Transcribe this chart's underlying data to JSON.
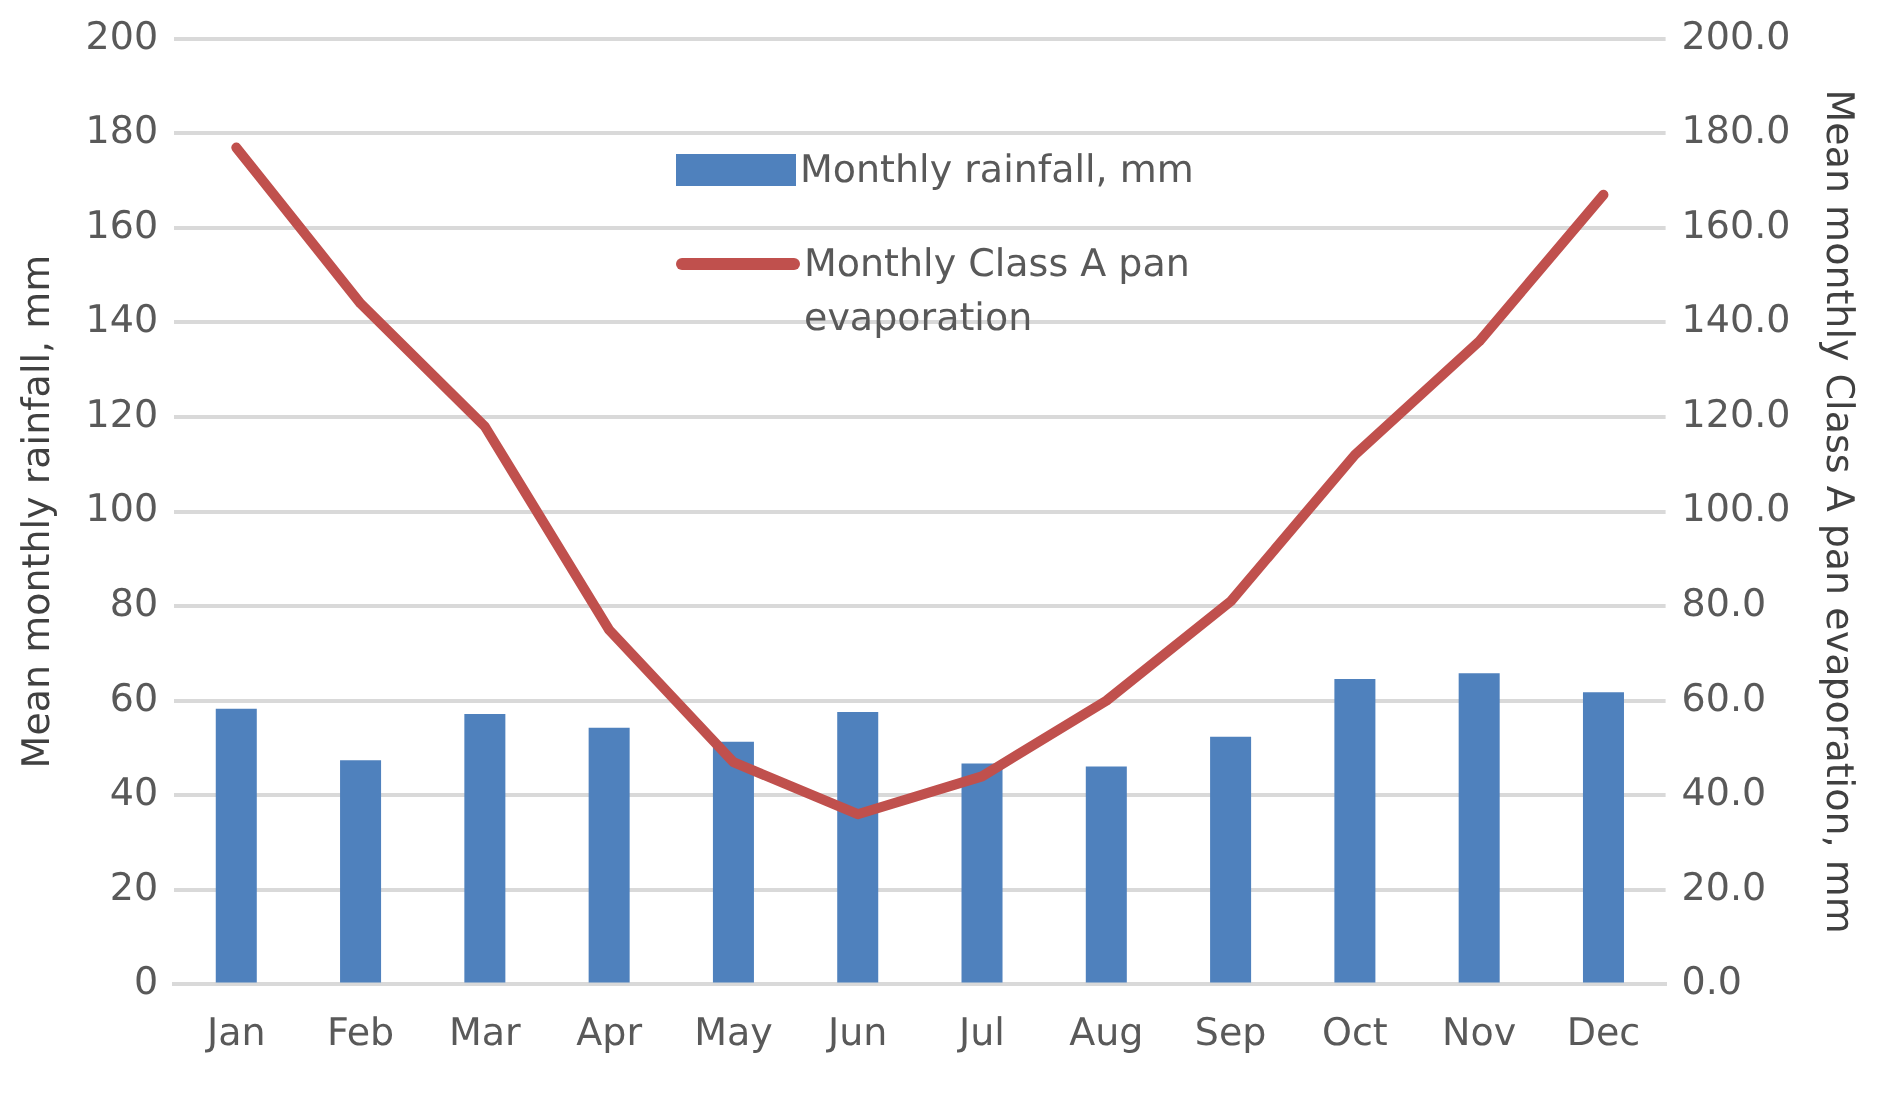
{
  "chart_data": {
    "type": "bar",
    "ylabel": "Mean monthly rainfall, mm",
    "y2label": "Mean monthly Class A pan evaporation, mm",
    "categories": [
      "Jan",
      "Feb",
      "Mar",
      "Apr",
      "May",
      "Jun",
      "Jul",
      "Aug",
      "Sep",
      "Oct",
      "Nov",
      "Dec"
    ],
    "series": [
      {
        "name": "Monthly rainfall, mm",
        "color": "#4f81bd",
        "values": [
          58.3,
          47.4,
          57.2,
          54.3,
          51.3,
          57.6,
          46.7,
          46.1,
          52.4,
          64.6,
          65.8,
          61.8
        ]
      },
      {
        "name": "Monthly Class A pan evaporation",
        "type": "line",
        "axis": "y2",
        "color": "#c0504d",
        "values": [
          177,
          144,
          118,
          75,
          47,
          36,
          44,
          60,
          81,
          112,
          136,
          167
        ]
      }
    ],
    "ylim": [
      0,
      200
    ],
    "yticks": [
      0,
      20,
      40,
      60,
      80,
      100,
      120,
      140,
      160,
      180,
      200
    ],
    "y2lim": [
      0,
      200
    ],
    "y2ticks": [
      {
        "value": 0,
        "label": "0.0"
      },
      {
        "value": 20,
        "label": "20.0"
      },
      {
        "value": 40,
        "label": "40.0"
      },
      {
        "value": 60,
        "label": "60.0"
      },
      {
        "value": 80,
        "label": "80.0"
      },
      {
        "value": 100,
        "label": "100.0"
      },
      {
        "value": 120,
        "label": "120.0"
      },
      {
        "value": 140,
        "label": "140.0"
      },
      {
        "value": 160,
        "label": "160.0"
      },
      {
        "value": 180,
        "label": "180.0"
      },
      {
        "value": 200,
        "label": "200.0"
      }
    ],
    "grid": "y",
    "legend": "top",
    "marker": "none",
    "line_style": "solid"
  }
}
